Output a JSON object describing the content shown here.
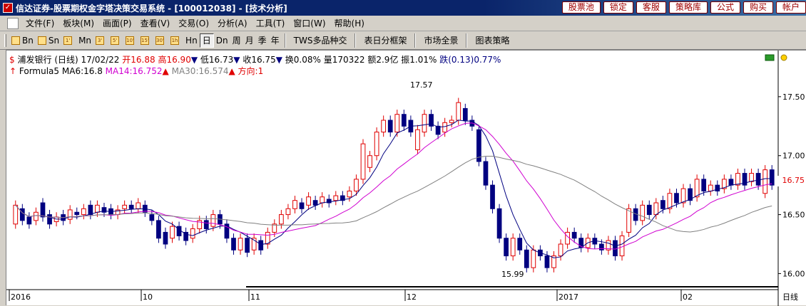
{
  "window": {
    "title": "信达证券-股票期权金字塔决策交易系统 - [100012038] - [技术分析]",
    "buttons": [
      "股票池",
      "锁定",
      "客服",
      "策略库",
      "公式",
      "购买",
      "帐户"
    ]
  },
  "menu": [
    "文件(F)",
    "板块(M)",
    "画面(P)",
    "查看(V)",
    "交易(O)",
    "分析(A)",
    "工具(T)",
    "窗口(W)",
    "帮助(H)"
  ],
  "toolbar": {
    "periods": [
      "Bn",
      "Sn",
      "1'",
      "Mn",
      "3'",
      "5'",
      "10'",
      "15'",
      "30'",
      "1h",
      "Hn",
      "日",
      "Dn",
      "周",
      "月",
      "季",
      "年"
    ],
    "active": "日",
    "tabs": [
      "TWS多品种交",
      "表日分框架",
      "市场全景",
      "图表策略"
    ]
  },
  "quote": {
    "name": "浦发银行",
    "period": "(日线)",
    "date": "17/02/22",
    "open_label": "开",
    "open": "16.88",
    "high_label": "高",
    "high": "16.90",
    "low_label": "低",
    "low": "16.73",
    "close_label": "收",
    "close": "16.75",
    "turnover": "换0.08%",
    "volume": "量170322",
    "amount": "额2.9亿",
    "amplitude": "振1.01%",
    "change": "跌(0.13)0.77%"
  },
  "indicators": {
    "formula": "Formula5",
    "ma6": "MA6:16.8",
    "ma14": "MA14:16.752",
    "ma30": "MA30:16.574",
    "direction": "方向:1"
  },
  "colors": {
    "up": "#e00000",
    "down": "#000080",
    "ma6": "#000080",
    "ma14": "#d000d0",
    "ma30": "#808080"
  },
  "chart_data": {
    "type": "candlestick",
    "ylim": [
      15.9,
      17.65
    ],
    "yticks": [
      "17.50",
      "17.00",
      "16.50",
      "16.00"
    ],
    "current_price": "16.75",
    "annotations": {
      "high": "17.57",
      "low": "15.99"
    },
    "xlabels": [
      "2016",
      "10",
      "11",
      "12",
      "2017",
      "02"
    ],
    "period_label": "日线",
    "candles": [
      [
        16.42,
        16.58
      ],
      [
        16.55,
        16.45
      ],
      [
        16.48,
        16.42
      ],
      [
        16.45,
        16.52
      ],
      [
        16.6,
        16.48
      ],
      [
        16.5,
        16.42
      ],
      [
        16.44,
        16.48
      ],
      [
        16.5,
        16.45
      ],
      [
        16.46,
        16.54
      ],
      [
        16.52,
        16.5
      ],
      [
        16.5,
        16.55
      ],
      [
        16.58,
        16.5
      ],
      [
        16.52,
        16.58
      ],
      [
        16.56,
        16.52
      ],
      [
        16.55,
        16.5
      ],
      [
        16.5,
        16.54
      ],
      [
        16.55,
        16.58
      ],
      [
        16.58,
        16.55
      ],
      [
        16.55,
        16.6
      ],
      [
        16.58,
        16.52
      ],
      [
        16.5,
        16.45
      ],
      [
        16.45,
        16.3
      ],
      [
        16.35,
        16.25
      ],
      [
        16.3,
        16.4
      ],
      [
        16.4,
        16.32
      ],
      [
        16.35,
        16.28
      ],
      [
        16.3,
        16.38
      ],
      [
        16.38,
        16.45
      ],
      [
        16.45,
        16.38
      ],
      [
        16.4,
        16.5
      ],
      [
        16.5,
        16.42
      ],
      [
        16.42,
        16.3
      ],
      [
        16.3,
        16.2
      ],
      [
        16.2,
        16.3
      ],
      [
        16.3,
        16.18
      ],
      [
        16.2,
        16.3
      ],
      [
        16.28,
        16.2
      ],
      [
        16.25,
        16.35
      ],
      [
        16.35,
        16.42
      ],
      [
        16.42,
        16.5
      ],
      [
        16.5,
        16.55
      ],
      [
        16.55,
        16.62
      ],
      [
        16.6,
        16.55
      ],
      [
        16.58,
        16.65
      ],
      [
        16.62,
        16.58
      ],
      [
        16.6,
        16.65
      ],
      [
        16.63,
        16.6
      ],
      [
        16.62,
        16.66
      ],
      [
        16.66,
        16.62
      ],
      [
        16.65,
        16.7
      ],
      [
        16.7,
        16.8
      ],
      [
        16.8,
        17.1
      ],
      [
        16.9,
        17.0
      ],
      [
        17.0,
        17.2
      ],
      [
        17.2,
        17.3
      ],
      [
        17.3,
        17.2
      ],
      [
        17.2,
        17.35
      ],
      [
        17.35,
        17.25
      ],
      [
        17.3,
        17.2
      ],
      [
        17.05,
        17.22
      ],
      [
        17.2,
        17.35
      ],
      [
        17.35,
        17.25
      ],
      [
        17.25,
        17.18
      ],
      [
        17.2,
        17.28
      ],
      [
        17.28,
        17.3
      ],
      [
        17.3,
        17.45
      ],
      [
        17.4,
        17.3
      ],
      [
        17.3,
        17.25
      ],
      [
        17.22,
        16.95
      ],
      [
        16.95,
        16.75
      ],
      [
        16.75,
        16.55
      ],
      [
        16.55,
        16.3
      ],
      [
        16.3,
        16.15
      ],
      [
        16.15,
        16.3
      ],
      [
        16.3,
        16.2
      ],
      [
        16.2,
        16.05
      ],
      [
        16.05,
        16.2
      ],
      [
        16.2,
        16.15
      ],
      [
        16.15,
        16.05
      ],
      [
        16.05,
        16.15
      ],
      [
        16.15,
        16.25
      ],
      [
        16.25,
        16.35
      ],
      [
        16.35,
        16.3
      ],
      [
        16.3,
        16.22
      ],
      [
        16.22,
        16.3
      ],
      [
        16.3,
        16.25
      ],
      [
        16.25,
        16.2
      ],
      [
        16.2,
        16.28
      ],
      [
        16.28,
        16.15
      ],
      [
        16.15,
        16.32
      ],
      [
        16.35,
        16.55
      ],
      [
        16.55,
        16.45
      ],
      [
        16.45,
        16.58
      ],
      [
        16.58,
        16.5
      ],
      [
        16.5,
        16.6
      ],
      [
        16.62,
        16.55
      ],
      [
        16.55,
        16.68
      ],
      [
        16.68,
        16.6
      ],
      [
        16.6,
        16.72
      ],
      [
        16.72,
        16.62
      ],
      [
        16.65,
        16.8
      ],
      [
        16.8,
        16.7
      ],
      [
        16.7,
        16.75
      ],
      [
        16.75,
        16.7
      ],
      [
        16.72,
        16.8
      ],
      [
        16.8,
        16.75
      ],
      [
        16.75,
        16.85
      ],
      [
        16.85,
        16.75
      ],
      [
        16.78,
        16.85
      ],
      [
        16.85,
        16.75
      ],
      [
        16.68,
        16.88
      ],
      [
        16.88,
        16.75
      ]
    ]
  }
}
